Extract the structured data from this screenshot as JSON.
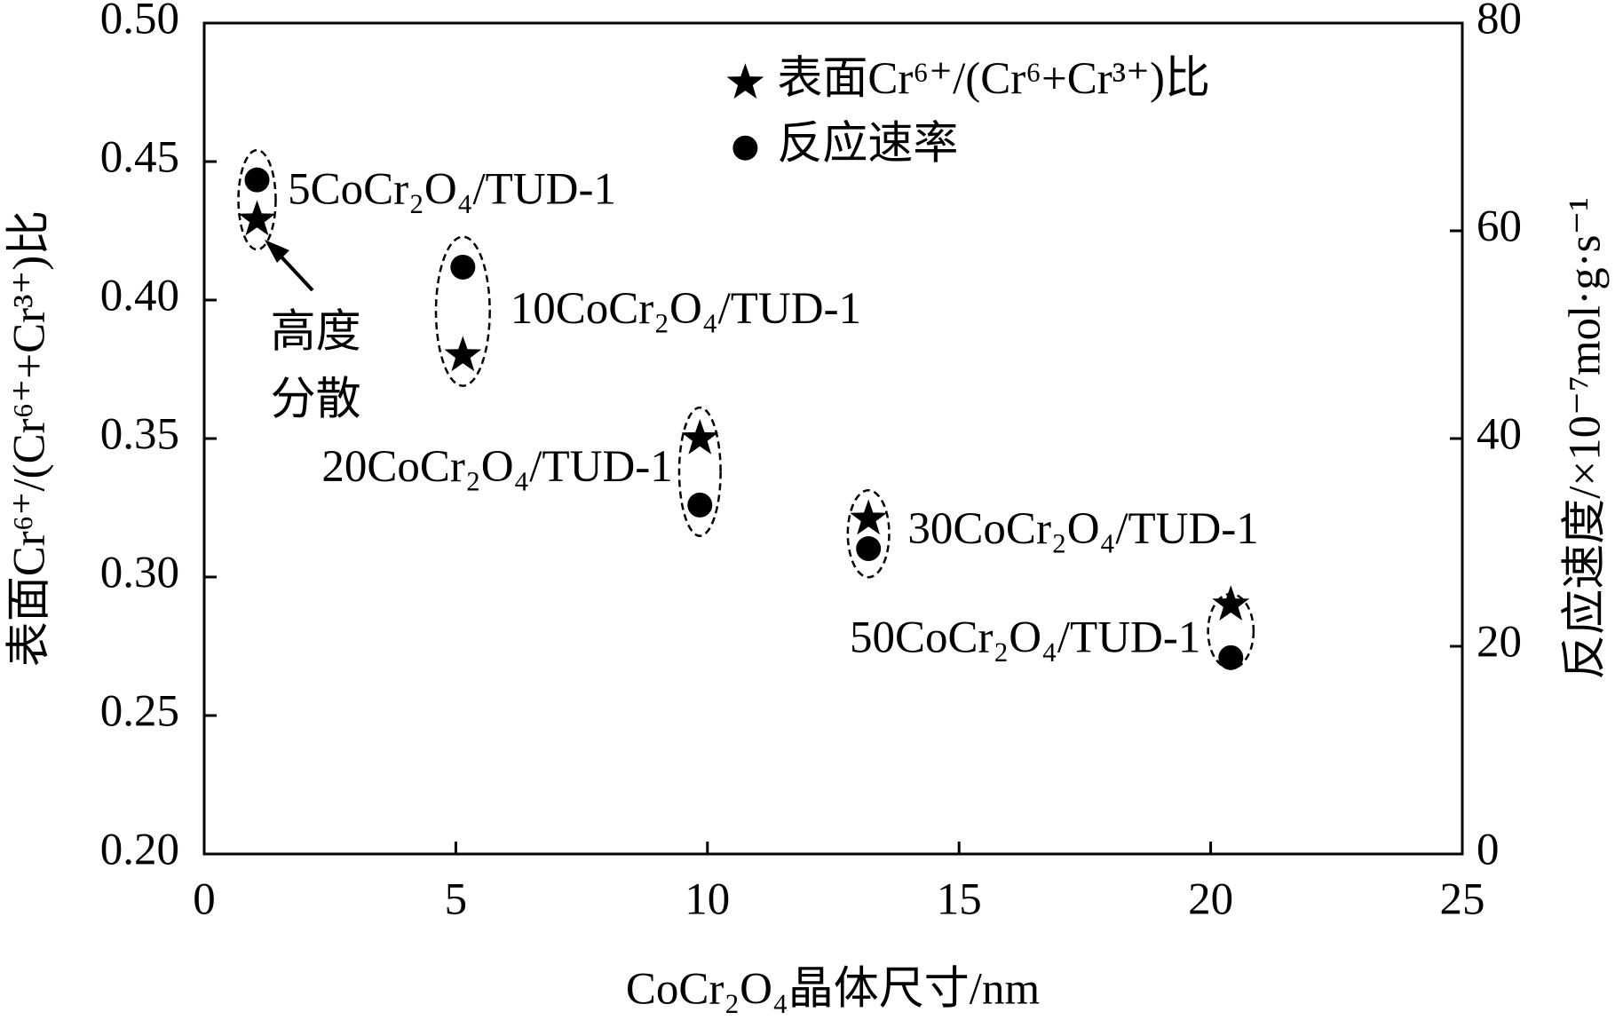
{
  "chart_data": {
    "type": "scatter",
    "xlabel": "CoCr₂O₄晶体尺寸/nm",
    "ylabel": "表面Cr⁶⁺/(Cr⁶⁺+Cr³⁺)比",
    "y2label": "反应速度/×10⁻⁷mol·g·s⁻¹",
    "xlim": [
      0,
      25
    ],
    "xticks": [
      0,
      5,
      10,
      15,
      20,
      25
    ],
    "ylim": [
      0.2,
      0.5
    ],
    "yticks": [
      {
        "value": 0.2,
        "label": "0.20"
      },
      {
        "value": 0.25,
        "label": "0.25"
      },
      {
        "value": 0.3,
        "label": "0.30"
      },
      {
        "value": 0.35,
        "label": "0.35"
      },
      {
        "value": 0.4,
        "label": "0.40"
      },
      {
        "value": 0.45,
        "label": "0.45"
      },
      {
        "value": 0.5,
        "label": "0.50"
      }
    ],
    "y2lim": [
      0,
      80
    ],
    "y2ticks": [
      0,
      20,
      40,
      60,
      80
    ],
    "series": [
      {
        "name": "表面Cr⁶⁺/(Cr⁶+Cr³⁺)比",
        "marker": "star",
        "color": "#000000",
        "x": [
          1.05,
          5.14,
          9.85,
          13.2,
          20.4
        ],
        "values": [
          0.429,
          0.38,
          0.35,
          0.321,
          0.29
        ]
      },
      {
        "name": "反应速率",
        "marker": "circle",
        "color": "#000000",
        "axis": "y2",
        "x": [
          1.05,
          5.14,
          9.85,
          13.2,
          20.4
        ],
        "values": [
          64.9,
          56.5,
          33.6,
          29.4,
          18.9
        ]
      }
    ],
    "point_labels": [
      "5CoCr₂O₄/TUD-1",
      "10CoCr₂O₄/TUD-1",
      "20CoCr₂O₄/TUD-1",
      "30CoCr₂O₄/TUD-1",
      "50CoCr₂O₄/TUD-1"
    ],
    "annotation": [
      "高度",
      "分散"
    ]
  }
}
